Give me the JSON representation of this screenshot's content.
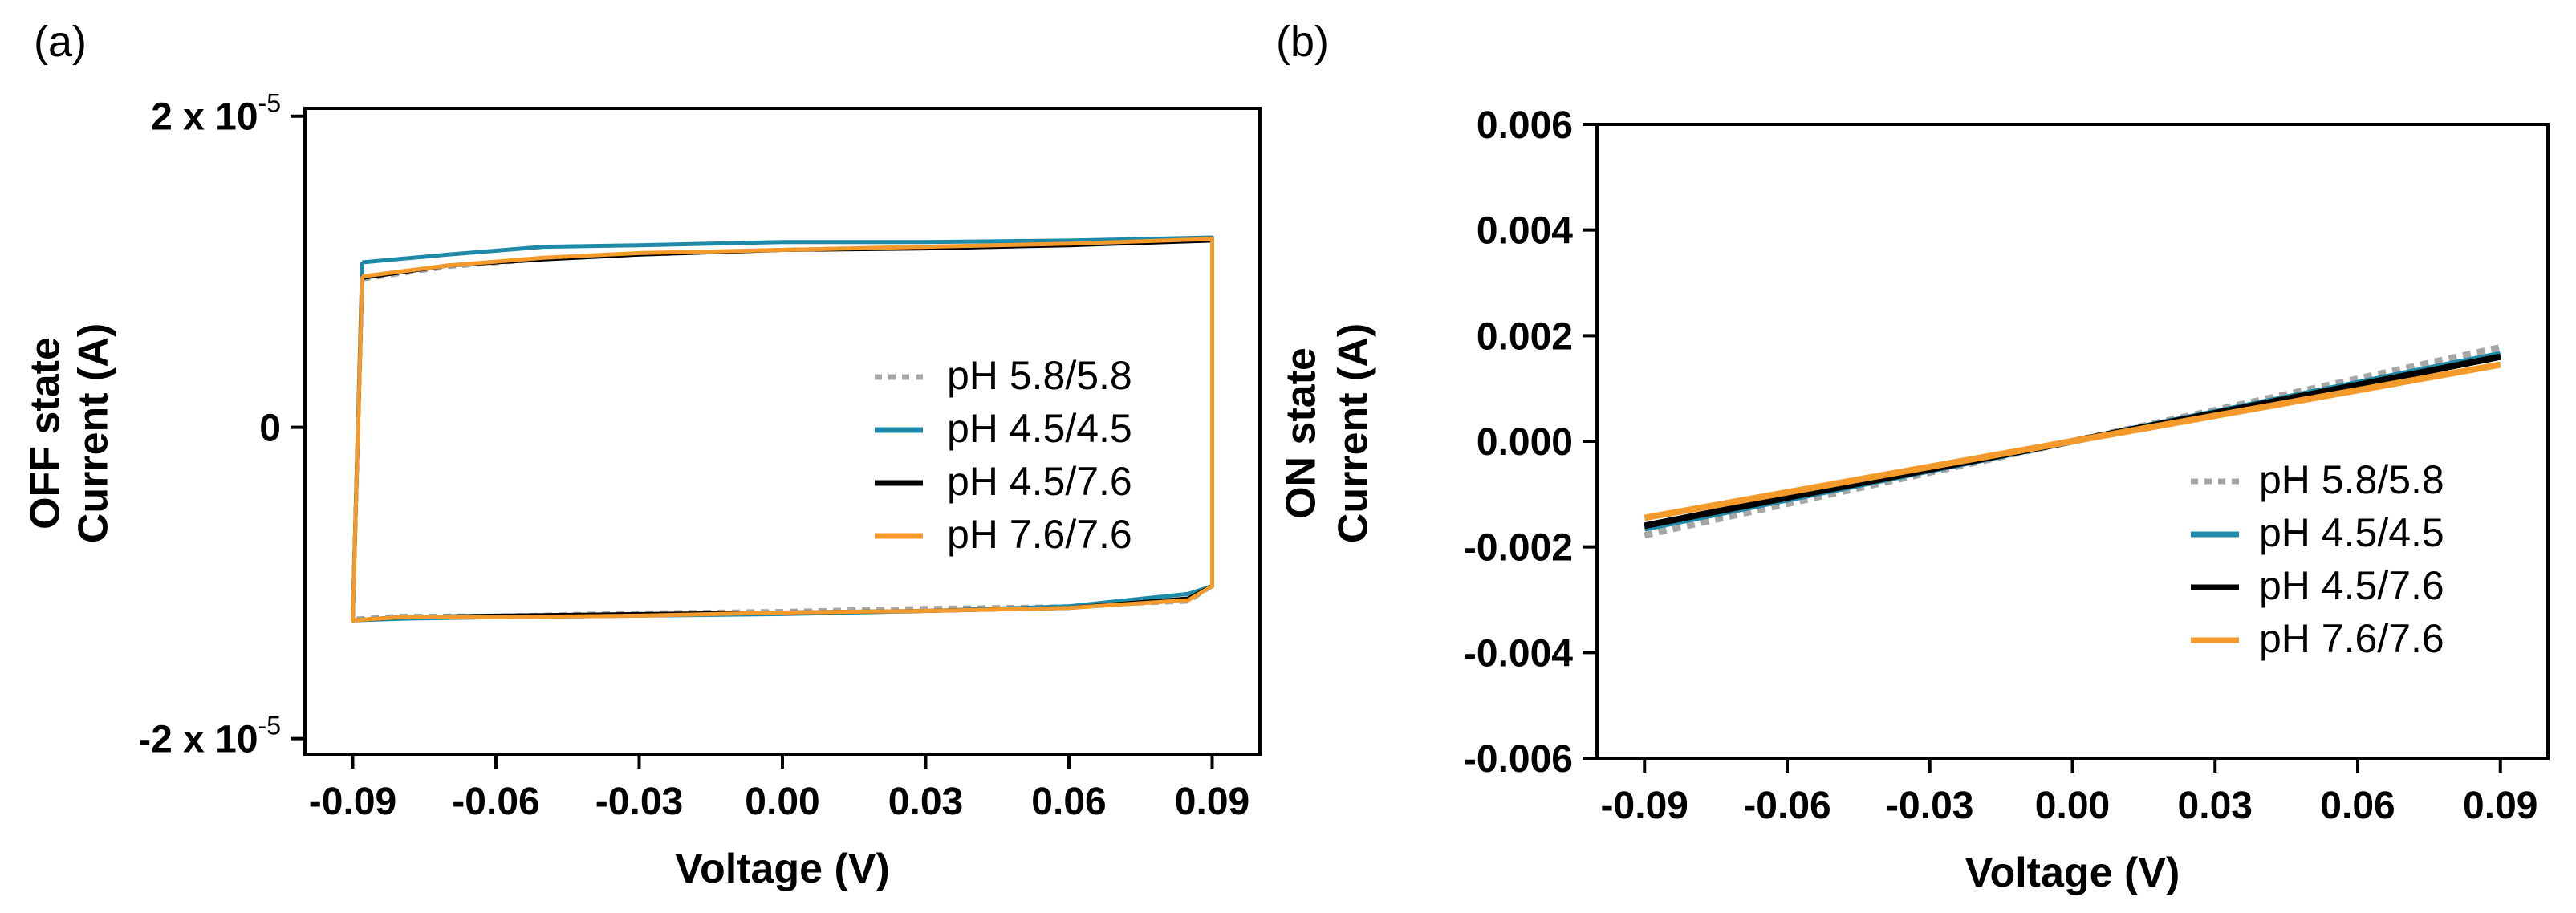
{
  "chart_data": [
    {
      "type": "line",
      "panel_label": "(a)",
      "xlabel": "Voltage (V)",
      "ylabel_lines": [
        "OFF  state",
        "Current (A)"
      ],
      "xlim": [
        -0.1,
        0.1
      ],
      "ylim": [
        -2.1e-05,
        2.05e-05
      ],
      "xticks": [
        -0.09,
        -0.06,
        -0.03,
        0.0,
        0.03,
        0.06,
        0.09
      ],
      "xtick_labels": [
        "-0.09",
        "-0.06",
        "-0.03",
        "0.00",
        "0.03",
        "0.06",
        "0.09"
      ],
      "yticks": [
        2e-05,
        0,
        -2e-05
      ],
      "ytick_labels": [
        {
          "base": "2 x 10",
          "exp": "-5"
        },
        {
          "base": "0",
          "exp": ""
        },
        {
          "base": "-2 x 10",
          "exp": "-5"
        }
      ],
      "grid": false,
      "legend": "right",
      "series": [
        {
          "name": "pH 5.8/5.8",
          "color": "#a6a6a6",
          "dashed": true,
          "loop": {
            "x": [
              -0.088,
              -0.07,
              -0.05,
              -0.03,
              0.0,
              0.03,
              0.06,
              0.09,
              0.09,
              0.085,
              0.06,
              0.03,
              0.0,
              -0.03,
              -0.06,
              -0.08,
              -0.09,
              -0.088
            ],
            "y": [
              9.5e-06,
              1.03e-05,
              1.08e-05,
              1.11e-05,
              1.14e-05,
              1.16e-05,
              1.17e-05,
              1.21e-05,
              -1.02e-05,
              -1.12e-05,
              -1.15e-05,
              -1.16e-05,
              -1.18e-05,
              -1.19e-05,
              -1.21e-05,
              -1.21e-05,
              -1.23e-05,
              9.5e-06
            ]
          }
        },
        {
          "name": "pH 4.5/4.5",
          "color": "#1f8aa8",
          "dashed": false,
          "loop": {
            "x": [
              -0.088,
              -0.07,
              -0.05,
              -0.03,
              0.0,
              0.03,
              0.06,
              0.09,
              0.09,
              0.085,
              0.06,
              0.03,
              0.0,
              -0.03,
              -0.06,
              -0.08,
              -0.09,
              -0.088
            ],
            "y": [
              1.06e-05,
              1.11e-05,
              1.16e-05,
              1.17e-05,
              1.19e-05,
              1.19e-05,
              1.2e-05,
              1.22e-05,
              -1.02e-05,
              -1.07e-05,
              -1.15e-05,
              -1.18e-05,
              -1.2e-05,
              -1.21e-05,
              -1.22e-05,
              -1.23e-05,
              -1.24e-05,
              1.06e-05
            ]
          }
        },
        {
          "name": "pH 4.5/7.6",
          "color": "#000000",
          "dashed": false,
          "loop": {
            "x": [
              -0.088,
              -0.07,
              -0.05,
              -0.03,
              0.0,
              0.03,
              0.06,
              0.09,
              0.09,
              0.085,
              0.06,
              0.03,
              0.0,
              -0.03,
              -0.06,
              -0.08,
              -0.09,
              -0.088
            ],
            "y": [
              9.6e-06,
              1.04e-05,
              1.08e-05,
              1.11e-05,
              1.14e-05,
              1.15e-05,
              1.17e-05,
              1.2e-05,
              -1.02e-05,
              -1.1e-05,
              -1.16e-05,
              -1.18e-05,
              -1.19e-05,
              -1.2e-05,
              -1.21e-05,
              -1.22e-05,
              -1.24e-05,
              9.6e-06
            ]
          }
        },
        {
          "name": "pH 7.6/7.6",
          "color": "#f39a2b",
          "dashed": false,
          "loop": {
            "x": [
              -0.088,
              -0.07,
              -0.05,
              -0.03,
              0.0,
              0.03,
              0.06,
              0.09,
              0.09,
              0.085,
              0.06,
              0.03,
              0.0,
              -0.03,
              -0.06,
              -0.08,
              -0.09,
              -0.088
            ],
            "y": [
              9.7e-06,
              1.04e-05,
              1.09e-05,
              1.12e-05,
              1.14e-05,
              1.16e-05,
              1.18e-05,
              1.21e-05,
              -1.02e-05,
              -1.11e-05,
              -1.16e-05,
              -1.18e-05,
              -1.19e-05,
              -1.21e-05,
              -1.22e-05,
              -1.22e-05,
              -1.24e-05,
              9.7e-06
            ]
          }
        }
      ]
    },
    {
      "type": "line",
      "panel_label": "(b)",
      "xlabel": "Voltage (V)",
      "ylabel_lines": [
        "ON state",
        "Current (A)"
      ],
      "xlim": [
        -0.1,
        0.1
      ],
      "ylim": [
        -0.006,
        0.006
      ],
      "xticks": [
        -0.09,
        -0.06,
        -0.03,
        0.0,
        0.03,
        0.06,
        0.09
      ],
      "xtick_labels": [
        "-0.09",
        "-0.06",
        "-0.03",
        "0.00",
        "0.03",
        "0.06",
        "0.09"
      ],
      "yticks": [
        0.006,
        0.004,
        0.002,
        0.0,
        -0.002,
        -0.004,
        -0.006
      ],
      "ytick_labels": [
        "0.006",
        "0.004",
        "0.002",
        "0.000",
        "-0.002",
        "-0.004",
        "-0.006"
      ],
      "grid": false,
      "legend": "bottom-right",
      "series": [
        {
          "name": "pH 5.8/5.8",
          "color": "#a6a6a6",
          "dashed": true,
          "x": [
            -0.09,
            0.09
          ],
          "y": [
            -0.00178,
            0.00178
          ]
        },
        {
          "name": "pH 4.5/4.5",
          "color": "#1f8aa8",
          "dashed": false,
          "x": [
            -0.09,
            0.09
          ],
          "y": [
            -0.00165,
            0.00165
          ]
        },
        {
          "name": "pH 4.5/7.6",
          "color": "#000000",
          "dashed": false,
          "x": [
            -0.09,
            0.09
          ],
          "y": [
            -0.0016,
            0.0016
          ]
        },
        {
          "name": "pH 7.6/7.6",
          "color": "#f39a2b",
          "dashed": false,
          "x": [
            -0.09,
            0.09
          ],
          "y": [
            -0.00145,
            0.00145
          ]
        }
      ]
    }
  ]
}
